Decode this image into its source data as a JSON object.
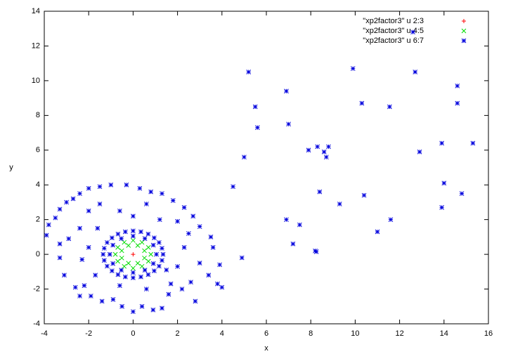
{
  "chart_data": {
    "type": "scatter",
    "x_label": "x",
    "y_label": "y",
    "xlim": [
      -4,
      16
    ],
    "ylim": [
      -4,
      14
    ],
    "xticks": [
      -4,
      -2,
      0,
      2,
      4,
      6,
      8,
      10,
      12,
      14,
      16
    ],
    "yticks": [
      -4,
      -2,
      0,
      2,
      4,
      6,
      8,
      10,
      12,
      14
    ],
    "legend": "top-right",
    "series": [
      {
        "name": "\"xp2factor3\" u 2:3",
        "color": "#ff0000",
        "marker": "plus",
        "x": [
          0
        ],
        "y": [
          0
        ]
      },
      {
        "name": "\"xp2factor3\" u 4:5",
        "color": "#00dd00",
        "marker": "cross",
        "x": [
          0.8,
          0.69,
          0.4,
          0,
          -0.4,
          -0.69,
          -0.8,
          -0.69,
          -0.4,
          0,
          0.4,
          0.69,
          0.51,
          0.21,
          -0.21,
          -0.51,
          -0.51,
          -0.21,
          0.21,
          0.51
        ],
        "y": [
          0,
          0.4,
          0.69,
          0.8,
          0.69,
          0.4,
          0,
          -0.4,
          -0.69,
          -0.8,
          -0.69,
          -0.4,
          0.21,
          0.51,
          0.51,
          0.21,
          -0.21,
          -0.51,
          -0.51,
          -0.21
        ]
      },
      {
        "name": "\"xp2factor3\" u 6:7",
        "color": "#0000dd",
        "marker": "star",
        "x": [
          1.35,
          1.3,
          1.17,
          0.95,
          0.68,
          0.35,
          0,
          -0.35,
          -0.68,
          -0.95,
          -1.17,
          -1.3,
          -1.35,
          -1.3,
          -1.17,
          -0.95,
          -0.68,
          -0.35,
          0,
          0.35,
          0.68,
          0.95,
          1.17,
          1.3,
          1.05,
          0.91,
          0.53,
          0,
          -0.53,
          -0.91,
          -1.05,
          -0.91,
          -0.53,
          0,
          0.53,
          0.91,
          -3.9,
          -3.8,
          -3.5,
          -3.3,
          -3.0,
          -2.7,
          -2.4,
          -2.0,
          -1.5,
          -1.0,
          -0.3,
          0.3,
          0.8,
          1.3,
          1.8,
          2.3,
          2.7,
          3.0,
          3.5,
          3.6,
          3.9,
          4.0,
          3.8,
          3.4,
          3.0,
          2.6,
          2.2,
          1.6,
          1.3,
          0.9,
          0.4,
          0,
          -0.5,
          -0.9,
          -1.4,
          -1.9,
          -2.4,
          -2.6,
          -3.1,
          -3.3,
          -3.3,
          -2.9,
          -2.4,
          -2.0,
          -1.5,
          -0.6,
          0.6,
          1.2,
          2.0,
          2.5,
          2.3,
          2.0,
          1.7,
          0.6,
          -0.6,
          -1.7,
          -2.3,
          -2.0,
          -1.6,
          0.0,
          1.5,
          2.8,
          -2.2,
          5.2,
          5.5,
          5.6,
          5.0,
          4.5,
          4.9,
          6.9,
          7.0,
          6.9,
          7.2,
          7.5,
          7.9,
          8.3,
          8.6,
          8.7,
          8.8,
          8.4,
          8.2,
          8.25,
          9.3,
          9.9,
          10.3,
          10.4,
          11.0,
          11.55,
          11.6,
          12.7,
          12.6,
          12.9,
          13.9,
          13.9,
          14.0,
          14.6,
          14.6,
          14.8,
          15.3
        ],
        "y": [
          0,
          0.35,
          0.68,
          0.95,
          1.17,
          1.3,
          1.35,
          1.3,
          1.17,
          0.95,
          0.68,
          0.35,
          0,
          -0.35,
          -0.68,
          -0.95,
          -1.17,
          -1.3,
          -1.35,
          -1.3,
          -1.17,
          -0.95,
          -0.68,
          -0.35,
          0,
          0.53,
          0.91,
          1.05,
          0.91,
          0.53,
          0,
          -0.53,
          -0.91,
          -1.05,
          -0.91,
          -0.53,
          1.1,
          1.7,
          2.1,
          2.6,
          3.0,
          3.2,
          3.5,
          3.8,
          3.9,
          4.0,
          4.0,
          3.8,
          3.6,
          3.5,
          3.1,
          2.7,
          2.2,
          1.6,
          1.0,
          0.4,
          -0.6,
          -1.9,
          -1.7,
          -1.2,
          -0.5,
          -1.6,
          -2.0,
          -2.3,
          -3.1,
          -3.2,
          -3.0,
          -3.3,
          -3.0,
          -2.6,
          -2.7,
          -2.4,
          -2.4,
          -1.9,
          -1.2,
          -0.2,
          0.6,
          0.9,
          1.5,
          2.5,
          2.9,
          2.5,
          2.9,
          2.0,
          1.9,
          1.2,
          0.4,
          -0.7,
          -1.7,
          -2.0,
          -1.8,
          -1.2,
          -0.3,
          0.4,
          1.5,
          2.2,
          -0.9,
          -2.7,
          -1.8,
          10.5,
          8.5,
          7.3,
          5.6,
          3.9,
          -0.2,
          9.4,
          7.5,
          2.0,
          0.6,
          1.7,
          6.0,
          6.2,
          5.9,
          5.6,
          6.2,
          3.6,
          0.2,
          0.15,
          2.9,
          10.7,
          8.7,
          3.4,
          1.3,
          8.5,
          2.0,
          10.5,
          12.8,
          5.9,
          6.4,
          2.7,
          4.1,
          9.7,
          8.7,
          3.5,
          6.4
        ]
      }
    ]
  }
}
